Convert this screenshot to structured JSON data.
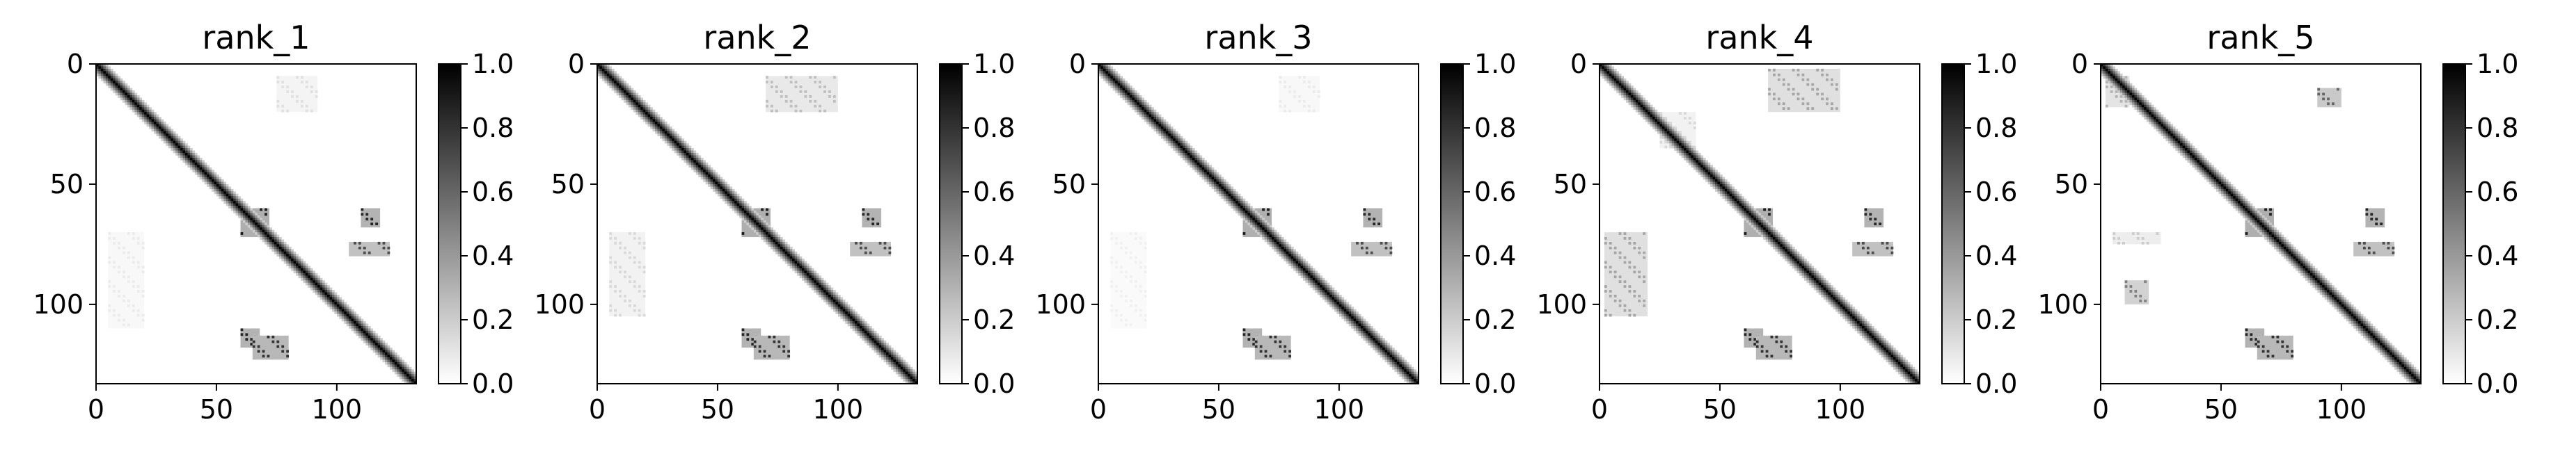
{
  "chart_data": [
    {
      "type": "heatmap",
      "title": "rank_1",
      "size": 133,
      "xticks": [
        0,
        50,
        100
      ],
      "yticks": [
        0,
        50,
        100
      ],
      "xlim": [
        0,
        133
      ],
      "ylim": [
        133,
        0
      ],
      "colorbar": {
        "min": 0.0,
        "max": 1.0,
        "ticks": [
          "0.0",
          "0.2",
          "0.4",
          "0.6",
          "0.8",
          "1.0"
        ],
        "colormap": "gray_r"
      },
      "features": {
        "diagonal_halfwidth": 4,
        "off_diagonal_blocks": [
          {
            "x": [
              60,
              72
            ],
            "y": [
              60,
              72
            ],
            "value": 0.9
          },
          {
            "x": [
              110,
              118
            ],
            "y": [
              60,
              68
            ],
            "value": 0.85
          },
          {
            "x": [
              60,
              68
            ],
            "y": [
              110,
              118
            ],
            "value": 0.85
          },
          {
            "x": [
              65,
              80
            ],
            "y": [
              113,
              123
            ],
            "value": 0.8
          },
          {
            "x": [
              105,
              122
            ],
            "y": [
              74,
              80
            ],
            "value": 0.7
          },
          {
            "x": [
              75,
              92
            ],
            "y": [
              5,
              20
            ],
            "value": 0.12
          },
          {
            "x": [
              5,
              20
            ],
            "y": [
              70,
              110
            ],
            "value": 0.08
          }
        ]
      }
    },
    {
      "type": "heatmap",
      "title": "rank_2",
      "size": 133,
      "xticks": [
        0,
        50,
        100
      ],
      "yticks": [
        0,
        50,
        100
      ],
      "xlim": [
        0,
        133
      ],
      "ylim": [
        133,
        0
      ],
      "colorbar": {
        "min": 0.0,
        "max": 1.0,
        "ticks": [
          "0.0",
          "0.2",
          "0.4",
          "0.6",
          "0.8",
          "1.0"
        ],
        "colormap": "gray_r"
      },
      "features": {
        "diagonal_halfwidth": 4,
        "off_diagonal_blocks": [
          {
            "x": [
              60,
              72
            ],
            "y": [
              60,
              72
            ],
            "value": 0.9
          },
          {
            "x": [
              110,
              118
            ],
            "y": [
              60,
              68
            ],
            "value": 0.85
          },
          {
            "x": [
              60,
              68
            ],
            "y": [
              110,
              118
            ],
            "value": 0.85
          },
          {
            "x": [
              65,
              80
            ],
            "y": [
              113,
              123
            ],
            "value": 0.8
          },
          {
            "x": [
              105,
              122
            ],
            "y": [
              74,
              80
            ],
            "value": 0.7
          },
          {
            "x": [
              70,
              100
            ],
            "y": [
              5,
              20
            ],
            "value": 0.25
          },
          {
            "x": [
              5,
              20
            ],
            "y": [
              70,
              105
            ],
            "value": 0.15
          }
        ]
      }
    },
    {
      "type": "heatmap",
      "title": "rank_3",
      "size": 133,
      "xticks": [
        0,
        50,
        100
      ],
      "yticks": [
        0,
        50,
        100
      ],
      "xlim": [
        0,
        133
      ],
      "ylim": [
        133,
        0
      ],
      "colorbar": {
        "min": 0.0,
        "max": 1.0,
        "ticks": [
          "0.0",
          "0.2",
          "0.4",
          "0.6",
          "0.8",
          "1.0"
        ],
        "colormap": "gray_r"
      },
      "features": {
        "diagonal_halfwidth": 4,
        "off_diagonal_blocks": [
          {
            "x": [
              60,
              72
            ],
            "y": [
              60,
              72
            ],
            "value": 0.9
          },
          {
            "x": [
              110,
              118
            ],
            "y": [
              60,
              68
            ],
            "value": 0.85
          },
          {
            "x": [
              60,
              68
            ],
            "y": [
              110,
              118
            ],
            "value": 0.85
          },
          {
            "x": [
              65,
              80
            ],
            "y": [
              113,
              123
            ],
            "value": 0.8
          },
          {
            "x": [
              105,
              122
            ],
            "y": [
              74,
              80
            ],
            "value": 0.7
          },
          {
            "x": [
              75,
              92
            ],
            "y": [
              5,
              20
            ],
            "value": 0.08
          },
          {
            "x": [
              5,
              20
            ],
            "y": [
              70,
              110
            ],
            "value": 0.06
          }
        ]
      }
    },
    {
      "type": "heatmap",
      "title": "rank_4",
      "size": 133,
      "xticks": [
        0,
        50,
        100
      ],
      "yticks": [
        0,
        50,
        100
      ],
      "xlim": [
        0,
        133
      ],
      "ylim": [
        133,
        0
      ],
      "colorbar": {
        "min": 0.0,
        "max": 1.0,
        "ticks": [
          "0.0",
          "0.2",
          "0.4",
          "0.6",
          "0.8",
          "1.0"
        ],
        "colormap": "gray_r"
      },
      "features": {
        "diagonal_halfwidth": 4,
        "off_diagonal_blocks": [
          {
            "x": [
              60,
              72
            ],
            "y": [
              60,
              72
            ],
            "value": 0.9
          },
          {
            "x": [
              110,
              118
            ],
            "y": [
              60,
              68
            ],
            "value": 0.85
          },
          {
            "x": [
              60,
              68
            ],
            "y": [
              110,
              118
            ],
            "value": 0.85
          },
          {
            "x": [
              65,
              80
            ],
            "y": [
              113,
              123
            ],
            "value": 0.8
          },
          {
            "x": [
              105,
              122
            ],
            "y": [
              74,
              80
            ],
            "value": 0.7
          },
          {
            "x": [
              70,
              100
            ],
            "y": [
              2,
              20
            ],
            "value": 0.35
          },
          {
            "x": [
              2,
              20
            ],
            "y": [
              70,
              105
            ],
            "value": 0.35
          },
          {
            "x": [
              25,
              40
            ],
            "y": [
              20,
              35
            ],
            "value": 0.15
          }
        ]
      }
    },
    {
      "type": "heatmap",
      "title": "rank_5",
      "size": 133,
      "xticks": [
        0,
        50,
        100
      ],
      "yticks": [
        0,
        50,
        100
      ],
      "xlim": [
        0,
        133
      ],
      "ylim": [
        133,
        0
      ],
      "colorbar": {
        "min": 0.0,
        "max": 1.0,
        "ticks": [
          "0.0",
          "0.2",
          "0.4",
          "0.6",
          "0.8",
          "1.0"
        ],
        "colormap": "gray_r"
      },
      "features": {
        "diagonal_halfwidth": 4,
        "off_diagonal_blocks": [
          {
            "x": [
              60,
              72
            ],
            "y": [
              60,
              72
            ],
            "value": 0.9
          },
          {
            "x": [
              110,
              118
            ],
            "y": [
              60,
              68
            ],
            "value": 0.85
          },
          {
            "x": [
              60,
              68
            ],
            "y": [
              110,
              118
            ],
            "value": 0.85
          },
          {
            "x": [
              65,
              80
            ],
            "y": [
              113,
              123
            ],
            "value": 0.8
          },
          {
            "x": [
              105,
              122
            ],
            "y": [
              74,
              80
            ],
            "value": 0.7
          },
          {
            "x": [
              90,
              100
            ],
            "y": [
              10,
              18
            ],
            "value": 0.6
          },
          {
            "x": [
              2,
              12
            ],
            "y": [
              5,
              18
            ],
            "value": 0.3
          },
          {
            "x": [
              10,
              20
            ],
            "y": [
              90,
              100
            ],
            "value": 0.5
          },
          {
            "x": [
              5,
              25
            ],
            "y": [
              70,
              75
            ],
            "value": 0.2
          }
        ]
      }
    }
  ]
}
